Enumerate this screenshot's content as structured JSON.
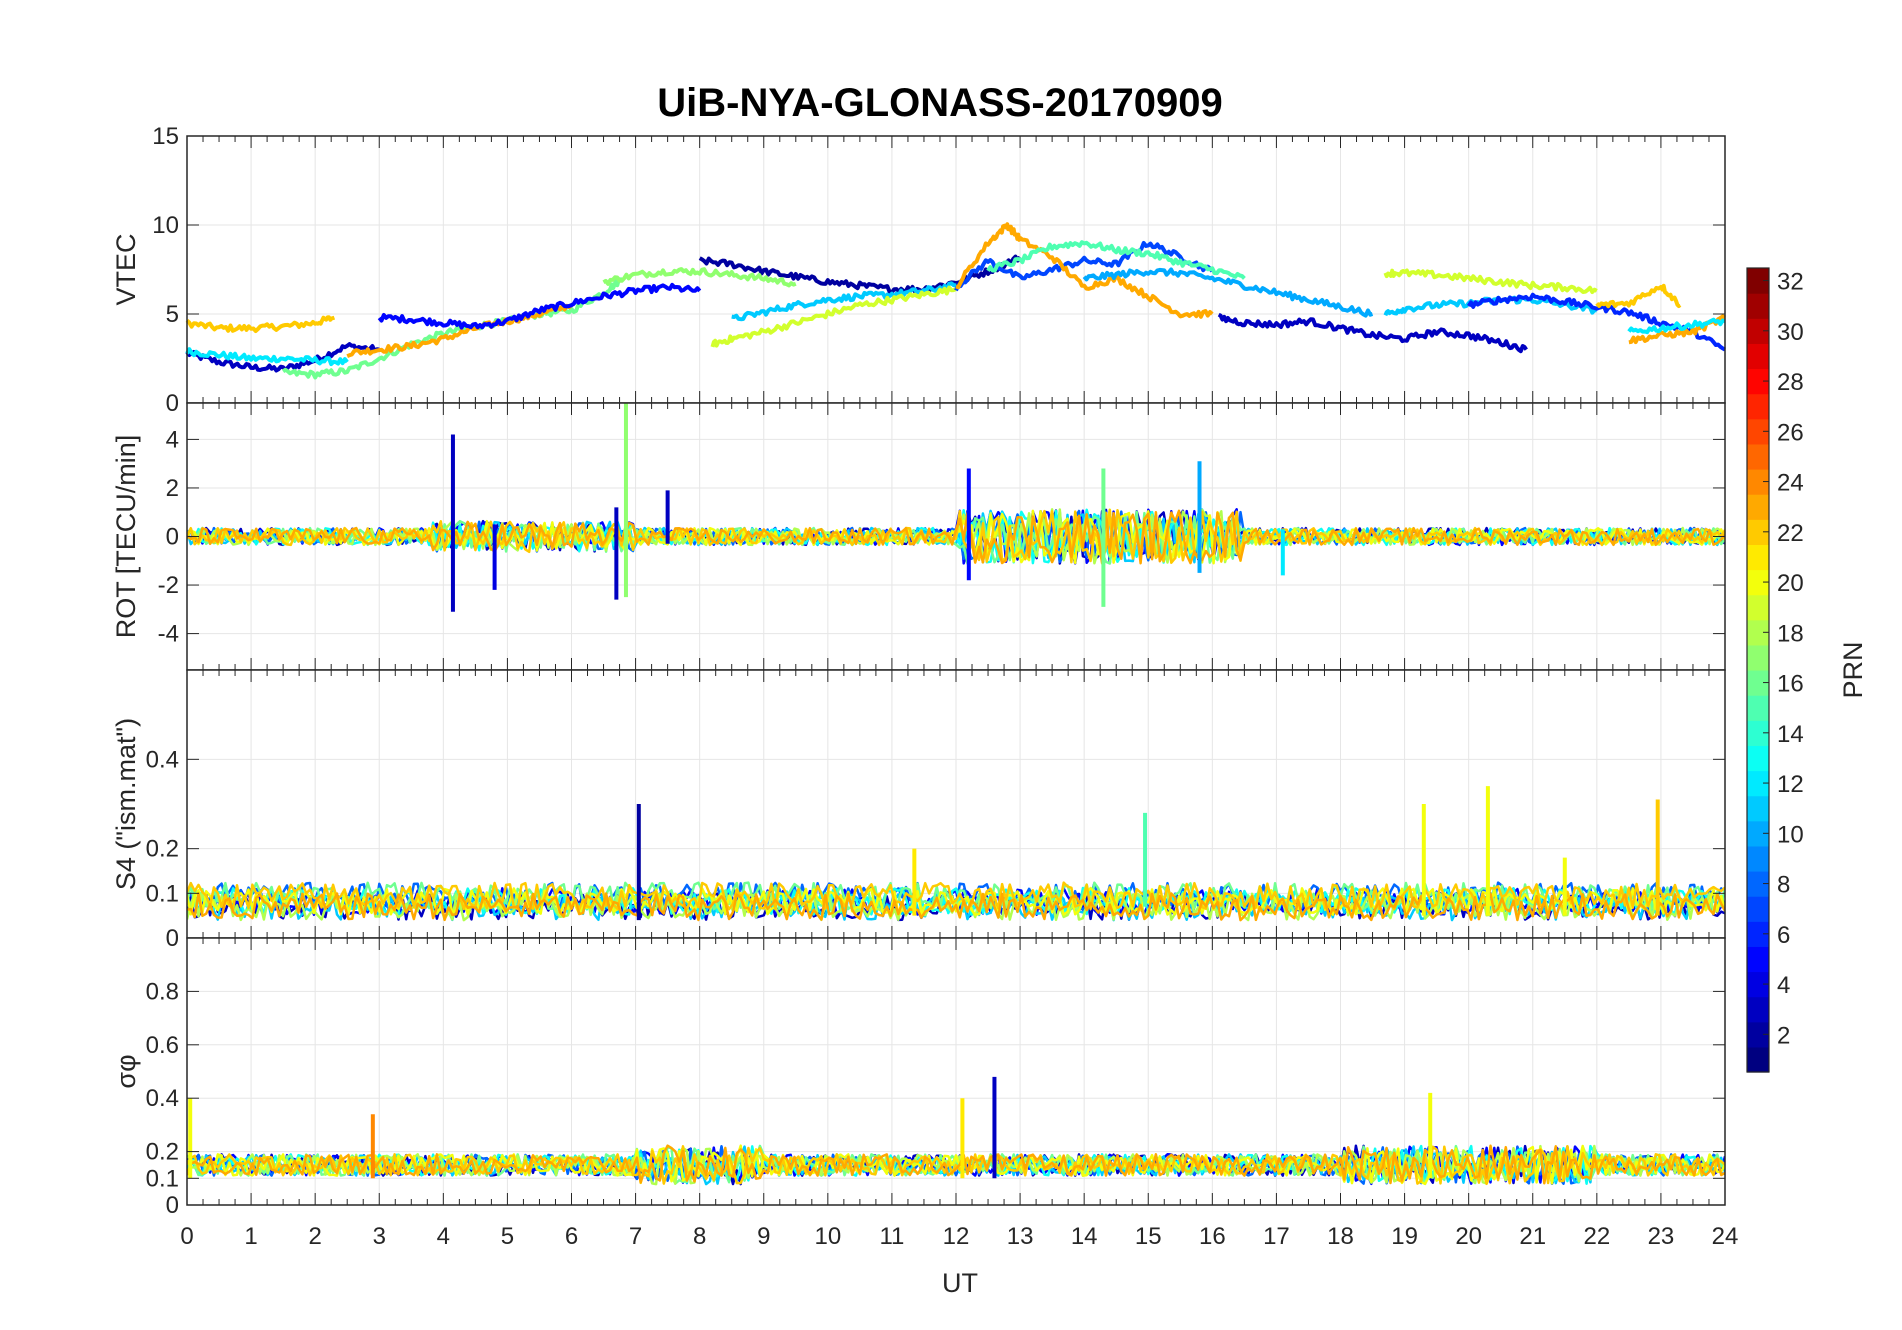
{
  "chart_data": {
    "title": "UiB-NYA-GLONASS-20170909",
    "x_label": "UT",
    "x_range": [
      0,
      24
    ],
    "x_ticks": [
      "0",
      "1",
      "2",
      "3",
      "4",
      "5",
      "6",
      "7",
      "8",
      "9",
      "10",
      "11",
      "12",
      "13",
      "14",
      "15",
      "16",
      "17",
      "18",
      "19",
      "20",
      "21",
      "22",
      "23",
      "24"
    ],
    "colorbar": {
      "label": "PRN",
      "range": [
        1,
        32
      ],
      "ticks": [
        "2",
        "4",
        "6",
        "8",
        "10",
        "12",
        "14",
        "16",
        "18",
        "20",
        "22",
        "24",
        "26",
        "28",
        "30",
        "32"
      ],
      "colormap": "jet"
    },
    "panels": [
      {
        "type": "line",
        "ylabel": "VTEC",
        "ylim": [
          0,
          15
        ],
        "yticks": [
          "0",
          "5",
          "10",
          "15"
        ],
        "series": [
          {
            "prn": 3,
            "x": [
              0,
              0.5,
              1,
              1.5,
              2,
              2.5,
              3
            ],
            "y": [
              2.8,
              2.3,
              2.0,
              1.9,
              2.4,
              3.2,
              3.0
            ]
          },
          {
            "prn": 22,
            "x": [
              0,
              0.5,
              1,
              1.5,
              2,
              2.3
            ],
            "y": [
              4.5,
              4.2,
              4.2,
              4.3,
              4.5,
              4.8
            ]
          },
          {
            "prn": 12,
            "x": [
              0,
              0.5,
              1,
              1.5,
              2,
              2.5
            ],
            "y": [
              2.9,
              2.7,
              2.5,
              2.5,
              2.4,
              2.3
            ]
          },
          {
            "prn": 16,
            "x": [
              1.5,
              2,
              2.5,
              3,
              3.5,
              4,
              4.5,
              5,
              5.5,
              6,
              6.5,
              6.8
            ],
            "y": [
              1.7,
              1.6,
              1.8,
              2.5,
              3.3,
              3.9,
              4.3,
              4.6,
              5.0,
              5.2,
              6.2,
              7.0
            ]
          },
          {
            "prn": 23,
            "x": [
              2.5,
              3,
              3.5,
              4,
              4.5,
              5,
              5.5,
              6
            ],
            "y": [
              2.8,
              3.0,
              3.2,
              3.6,
              4.2,
              4.6,
              5.0,
              5.5
            ]
          },
          {
            "prn": 5,
            "x": [
              3,
              3.5,
              4,
              4.5,
              5,
              5.5,
              6,
              6.5,
              7,
              7.5,
              8
            ],
            "y": [
              4.8,
              4.7,
              4.5,
              4.3,
              4.6,
              5.2,
              5.6,
              6.0,
              6.3,
              6.5,
              6.3
            ]
          },
          {
            "prn": 2,
            "x": [
              8,
              8.5,
              9,
              9.5,
              10,
              10.5,
              11,
              11.5,
              12,
              12.5,
              13
            ],
            "y": [
              8.0,
              7.8,
              7.4,
              7.1,
              6.8,
              6.6,
              6.4,
              6.4,
              6.8,
              7.4,
              8.2
            ]
          },
          {
            "prn": 17,
            "x": [
              6.5,
              7,
              7.5,
              8,
              8.5,
              9,
              9.5
            ],
            "y": [
              6.8,
              7.2,
              7.4,
              7.4,
              7.2,
              7.0,
              6.7
            ]
          },
          {
            "prn": 11,
            "x": [
              8.5,
              9,
              9.5,
              10,
              10.5,
              11,
              11.5,
              12
            ],
            "y": [
              4.7,
              5.1,
              5.5,
              5.8,
              6.0,
              6.1,
              6.3,
              6.6
            ]
          },
          {
            "prn": 19,
            "x": [
              8.2,
              8.5,
              9,
              9.5,
              10,
              10.5,
              11,
              11.5,
              12
            ],
            "y": [
              3.3,
              3.6,
              4.0,
              4.5,
              5.0,
              5.5,
              5.8,
              6.1,
              6.4
            ]
          },
          {
            "prn": 7,
            "x": [
              12,
              12.5,
              13,
              13.5,
              14,
              14.5,
              15,
              15.5,
              16
            ],
            "y": [
              6.5,
              8.0,
              7.0,
              7.5,
              8.0,
              7.8,
              9.0,
              8.2,
              7.4
            ]
          },
          {
            "prn": 23,
            "x": [
              12,
              12.5,
              12.8,
              13,
              13.5,
              14,
              14.5,
              15,
              15.5,
              16
            ],
            "y": [
              6.5,
              9.0,
              10.0,
              9.2,
              8.2,
              6.5,
              7.0,
              6.0,
              5.0,
              5.0
            ]
          },
          {
            "prn": 15,
            "x": [
              12.5,
              13,
              13.5,
              14,
              14.5,
              15,
              15.5,
              16,
              16.5
            ],
            "y": [
              7.5,
              8.0,
              8.8,
              9.0,
              8.6,
              8.4,
              7.9,
              7.5,
              7.0
            ]
          },
          {
            "prn": 10,
            "x": [
              14,
              14.5,
              15,
              15.5,
              16,
              16.5,
              17,
              17.5,
              18,
              18.5
            ],
            "y": [
              7.0,
              7.2,
              7.4,
              7.3,
              7.0,
              6.6,
              6.2,
              5.8,
              5.4,
              5.0
            ]
          },
          {
            "prn": 3,
            "x": [
              16.1,
              16.5,
              17,
              17.5,
              18,
              18.5,
              19,
              19.5,
              20,
              20.5,
              20.9
            ],
            "y": [
              4.8,
              4.5,
              4.4,
              4.6,
              4.2,
              3.8,
              3.6,
              4.0,
              3.8,
              3.4,
              3.0
            ]
          },
          {
            "prn": 19,
            "x": [
              18.7,
              19,
              19.5,
              20,
              20.5,
              21,
              21.5,
              22
            ],
            "y": [
              7.3,
              7.3,
              7.2,
              7.0,
              6.8,
              6.6,
              6.5,
              6.3
            ]
          },
          {
            "prn": 11,
            "x": [
              18.7,
              19,
              19.5,
              20,
              20.5,
              21,
              21.5,
              22
            ],
            "y": [
              5.0,
              5.3,
              5.5,
              5.6,
              5.8,
              5.8,
              5.5,
              5.2
            ]
          },
          {
            "prn": 6,
            "x": [
              20,
              20.5,
              21,
              21.5,
              22,
              22.5,
              23,
              23.5,
              24
            ],
            "y": [
              5.5,
              5.8,
              6.0,
              5.7,
              5.4,
              5.1,
              4.5,
              4.0,
              3.0
            ]
          },
          {
            "prn": 22,
            "x": [
              22,
              22.5,
              23,
              23.3
            ],
            "y": [
              5.5,
              5.6,
              6.6,
              5.5
            ]
          },
          {
            "prn": 23,
            "x": [
              22.5,
              23,
              23.5,
              24
            ],
            "y": [
              3.5,
              3.8,
              4.0,
              4.8
            ]
          },
          {
            "prn": 12,
            "x": [
              22.5,
              23,
              23.5,
              24
            ],
            "y": [
              4.0,
              4.2,
              4.4,
              4.6
            ]
          }
        ]
      },
      {
        "type": "line",
        "ylabel": "ROT [TECU/min]",
        "ylim": [
          -5.5,
          5.5
        ],
        "yticks": [
          "-4",
          "-2",
          "0",
          "2",
          "4"
        ],
        "spikes": [
          {
            "prn": 3,
            "x": 4.15,
            "y": [
              -3.1,
              4.2
            ]
          },
          {
            "prn": 4,
            "x": 4.8,
            "y": [
              -2.2,
              0.5
            ]
          },
          {
            "prn": 17,
            "x": 6.85,
            "y": [
              -2.5,
              5.5
            ]
          },
          {
            "prn": 3,
            "x": 6.7,
            "y": [
              -2.6,
              1.2
            ]
          },
          {
            "prn": 3,
            "x": 7.5,
            "y": [
              -0.3,
              1.9
            ]
          },
          {
            "prn": 5,
            "x": 12.2,
            "y": [
              -1.8,
              2.8
            ]
          },
          {
            "prn": 16,
            "x": 14.3,
            "y": [
              -2.9,
              2.8
            ]
          },
          {
            "prn": 10,
            "x": 15.8,
            "y": [
              -1.5,
              3.1
            ]
          },
          {
            "prn": 12,
            "x": 17.1,
            "y": [
              -1.6,
              0.3
            ]
          }
        ]
      },
      {
        "type": "line",
        "ylabel": "S4 (\"ism.mat\")",
        "ylim": [
          0,
          0.6
        ],
        "yticks": [
          "0",
          "0.1",
          "0.2",
          "0.4"
        ],
        "spikes": [
          {
            "prn": 2,
            "x": 7.05,
            "y": [
              0.04,
              0.3
            ]
          },
          {
            "prn": 21,
            "x": 11.35,
            "y": [
              0.05,
              0.2
            ]
          },
          {
            "prn": 15,
            "x": 14.95,
            "y": [
              0.07,
              0.28
            ]
          },
          {
            "prn": 20,
            "x": 19.3,
            "y": [
              0.05,
              0.3
            ]
          },
          {
            "prn": 20,
            "x": 20.3,
            "y": [
              0.05,
              0.34
            ]
          },
          {
            "prn": 22,
            "x": 22.95,
            "y": [
              0.05,
              0.31
            ]
          },
          {
            "prn": 20,
            "x": 21.5,
            "y": [
              0.05,
              0.18
            ]
          }
        ]
      },
      {
        "type": "line",
        "ylabel": "σφ",
        "ylim": [
          0,
          1
        ],
        "yticks": [
          "0",
          "0.1",
          "0.2",
          "0.4",
          "0.6",
          "0.8"
        ],
        "spikes": [
          {
            "prn": 20,
            "x": 0.05,
            "y": [
              0.1,
              0.4
            ]
          },
          {
            "prn": 3,
            "x": 12.6,
            "y": [
              0.1,
              0.48
            ]
          },
          {
            "prn": 21,
            "x": 12.1,
            "y": [
              0.1,
              0.4
            ]
          },
          {
            "prn": 20,
            "x": 19.4,
            "y": [
              0.1,
              0.42
            ]
          },
          {
            "prn": 24,
            "x": 2.9,
            "y": [
              0.1,
              0.34
            ]
          }
        ]
      }
    ]
  }
}
